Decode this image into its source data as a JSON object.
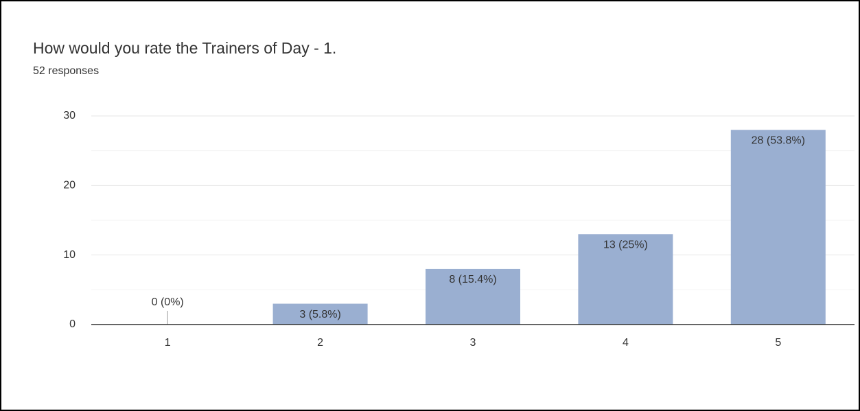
{
  "chart_data": {
    "type": "bar",
    "title": "How would you rate the Trainers of Day - 1.",
    "subtitle": "52 responses",
    "categories": [
      "1",
      "2",
      "3",
      "4",
      "5"
    ],
    "values": [
      0,
      3,
      8,
      13,
      28
    ],
    "value_labels": [
      "0 (0%)",
      "3 (5.8%)",
      "8 (15.4%)",
      "13 (25%)",
      "28 (53.8%)"
    ],
    "color": "#9aafd1",
    "ylim": [
      0,
      30
    ],
    "yticks": [
      0,
      10,
      20,
      30
    ],
    "minor_yticks": [
      5,
      15,
      25
    ],
    "grid": true
  }
}
